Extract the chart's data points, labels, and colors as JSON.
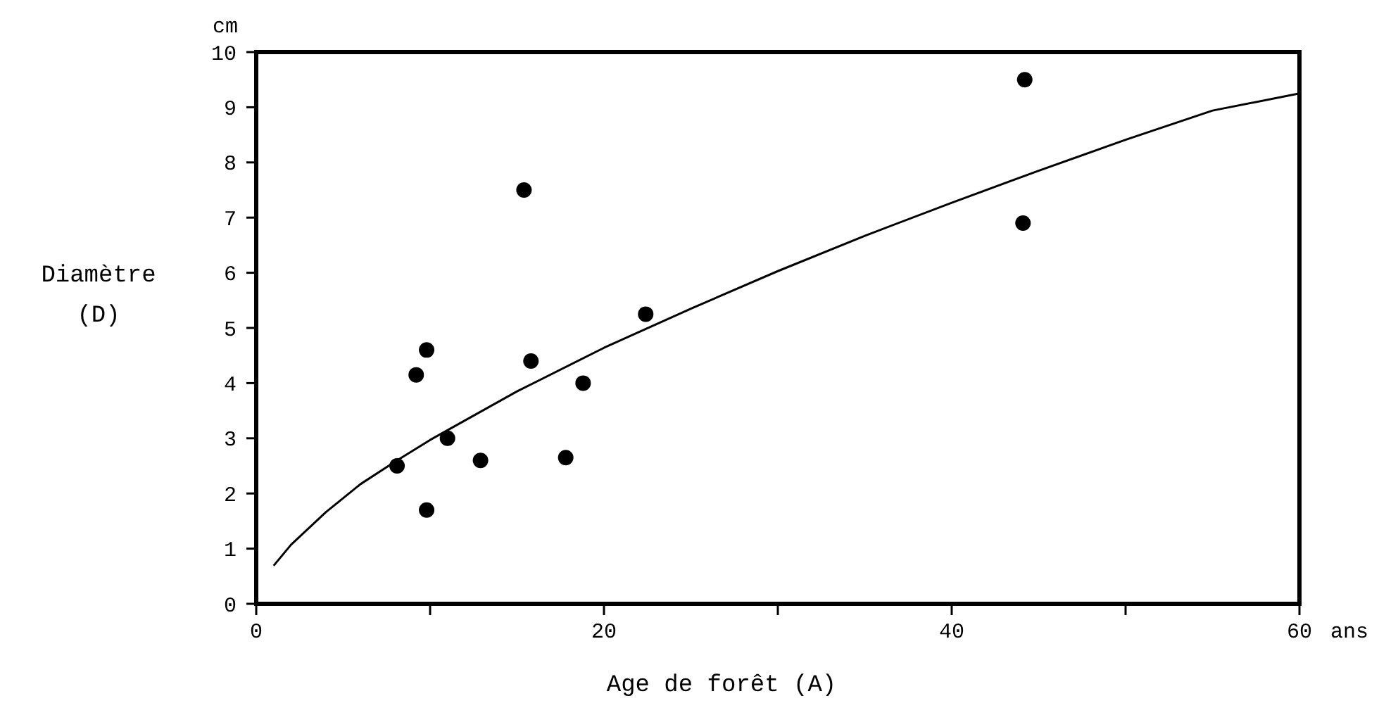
{
  "chart_data": {
    "type": "scatter",
    "xlabel": "Age de forêt (A)",
    "ylabel": "Diamètre (D)",
    "annotations": [
      "cm",
      "ans"
    ],
    "xlim": [
      0,
      60
    ],
    "ylim": [
      0,
      10
    ],
    "xticks": [
      0,
      {
        "value": 10,
        "label": null
      },
      20,
      {
        "value": 30,
        "label": null
      },
      40,
      {
        "value": 50,
        "label": null
      },
      60
    ],
    "yticks": [
      0,
      1,
      2,
      3,
      4,
      5,
      6,
      7,
      8,
      9,
      10
    ],
    "grid": false,
    "series": [
      {
        "color": "#000000",
        "marker": "circle",
        "x": [
          8.1,
          9.2,
          9.8,
          9.8,
          11.0,
          12.9,
          15.4,
          15.8,
          17.8,
          18.8,
          22.4,
          44.2,
          44.1
        ],
        "values": [
          2.5,
          4.15,
          4.6,
          1.7,
          3.0,
          2.6,
          7.5,
          4.4,
          2.65,
          4.0,
          5.25,
          9.5,
          6.9
        ]
      },
      {
        "type": "line",
        "color": "#000000",
        "marker": "none",
        "line_style": "solid",
        "x": [
          1,
          2,
          4,
          6,
          8,
          10,
          15,
          20,
          25,
          30,
          35,
          40,
          45,
          50,
          55,
          60
        ],
        "values": [
          0.69,
          1.07,
          1.66,
          2.17,
          2.58,
          2.97,
          3.85,
          4.64,
          5.35,
          6.03,
          6.67,
          7.27,
          7.85,
          8.41,
          8.94,
          9.25
        ]
      }
    ]
  }
}
